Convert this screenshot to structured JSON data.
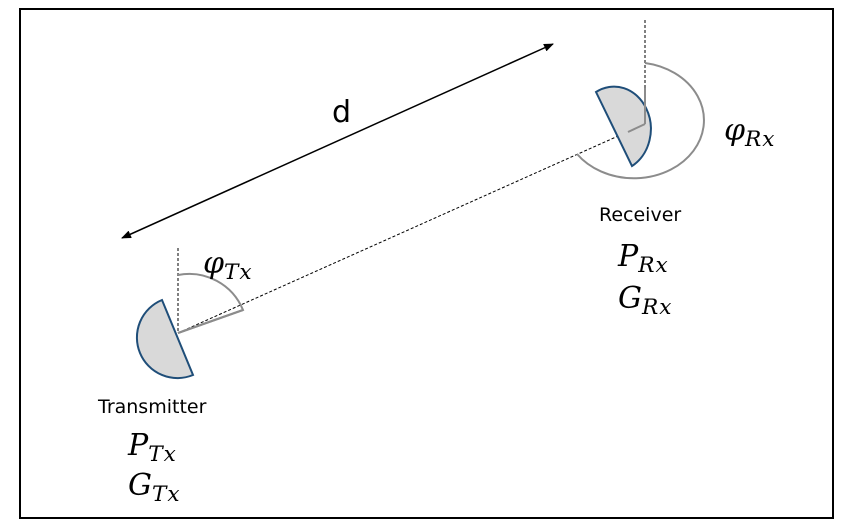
{
  "diagram": {
    "distance_label": "d",
    "transmitter": {
      "name": "Transmitter",
      "power_symbol": "P",
      "power_sub": "Tx",
      "gain_symbol": "G",
      "gain_sub": "Tx",
      "angle_symbol": "φ",
      "angle_sub": "Tx"
    },
    "receiver": {
      "name": "Receiver",
      "power_symbol": "P",
      "power_sub": "Rx",
      "gain_symbol": "G",
      "gain_sub": "Rx",
      "angle_symbol": "φ",
      "angle_sub": "Rx"
    },
    "colors": {
      "frame": "#000000",
      "dish_outline": "#1f4e79",
      "dish_fill": "#d9d9d9",
      "angle_arc": "#8c8c8c"
    }
  }
}
